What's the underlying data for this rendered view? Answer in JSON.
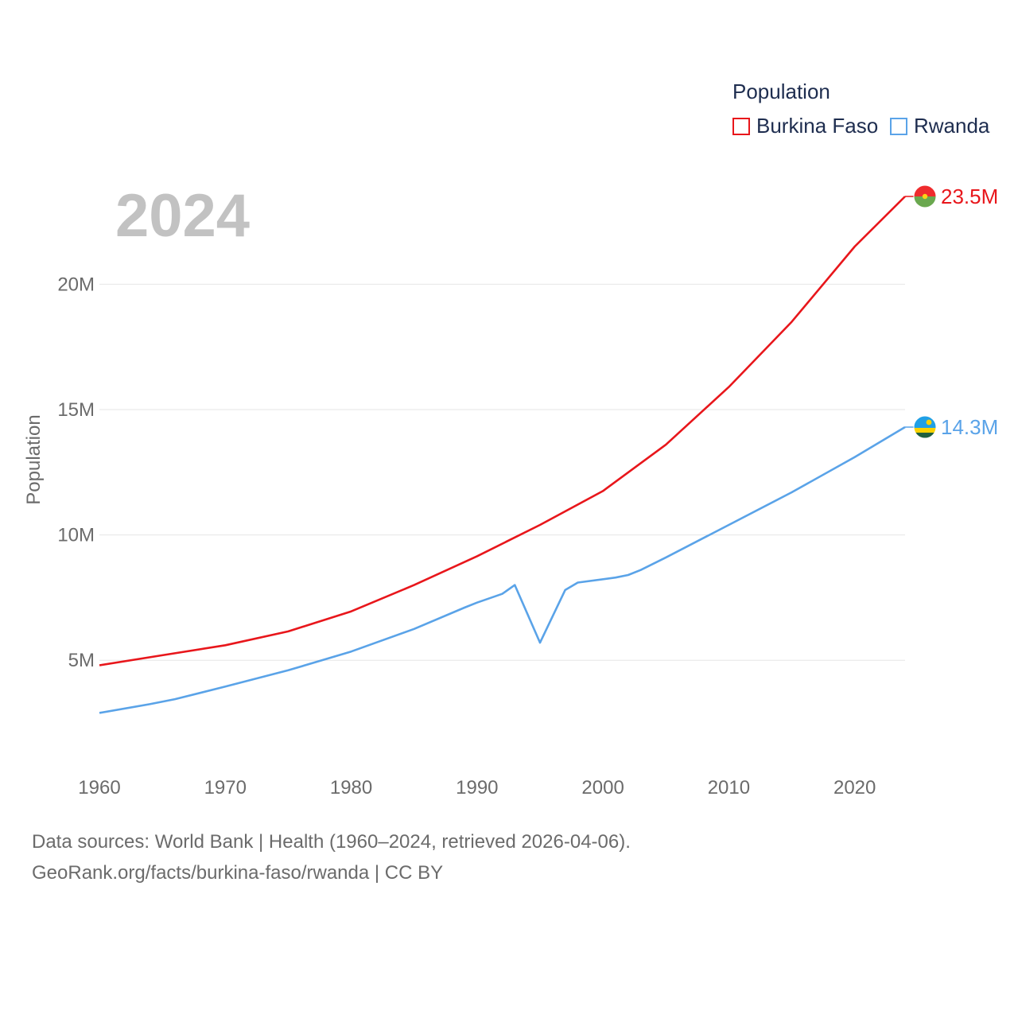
{
  "legend": {
    "title": "Population",
    "items": [
      {
        "label": "Burkina Faso",
        "color": "#e8161b"
      },
      {
        "label": "Rwanda",
        "color": "#5aa3e8"
      }
    ]
  },
  "year_label": "2024",
  "footer": {
    "line1": "Data sources: World Bank | Health (1960–2024, retrieved 2026-04-06).",
    "line2": "GeoRank.org/facts/burkina-faso/rwanda | CC BY"
  },
  "chart_data": {
    "type": "line",
    "title": "",
    "xlabel": "",
    "ylabel": "Population",
    "xlim": [
      1960,
      2024
    ],
    "ylim": [
      2500000,
      23500000
    ],
    "x_ticks": [
      1960,
      1970,
      1980,
      1990,
      2000,
      2010,
      2020
    ],
    "x_tick_labels": [
      "1960",
      "1970",
      "1980",
      "1990",
      "2000",
      "2010",
      "2020"
    ],
    "y_ticks": [
      5000000,
      10000000,
      15000000,
      20000000
    ],
    "y_tick_labels": [
      "5M",
      "10M",
      "15M",
      "20M"
    ],
    "grid": true,
    "series": [
      {
        "name": "Burkina Faso",
        "color": "#e8161b",
        "end_label": "23.5M",
        "flag": "burkina-faso-flag",
        "points": [
          [
            1960,
            4800000
          ],
          [
            1965,
            5200000
          ],
          [
            1970,
            5600000
          ],
          [
            1975,
            6150000
          ],
          [
            1980,
            6950000
          ],
          [
            1985,
            8000000
          ],
          [
            1990,
            9150000
          ],
          [
            1995,
            10400000
          ],
          [
            2000,
            11750000
          ],
          [
            2005,
            13600000
          ],
          [
            2010,
            15900000
          ],
          [
            2015,
            18500000
          ],
          [
            2020,
            21500000
          ],
          [
            2024,
            23500000
          ]
        ]
      },
      {
        "name": "Rwanda",
        "color": "#5aa3e8",
        "end_label": "14.3M",
        "flag": "rwanda-flag",
        "points": [
          [
            1960,
            2900000
          ],
          [
            1964,
            3250000
          ],
          [
            1966,
            3450000
          ],
          [
            1970,
            3950000
          ],
          [
            1975,
            4600000
          ],
          [
            1980,
            5350000
          ],
          [
            1985,
            6250000
          ],
          [
            1989,
            7100000
          ],
          [
            1990,
            7300000
          ],
          [
            1992,
            7650000
          ],
          [
            1993,
            8000000
          ],
          [
            1995,
            5700000
          ],
          [
            1997,
            7800000
          ],
          [
            1998,
            8100000
          ],
          [
            2001,
            8300000
          ],
          [
            2002,
            8400000
          ],
          [
            2003,
            8600000
          ],
          [
            2005,
            9100000
          ],
          [
            2010,
            10400000
          ],
          [
            2015,
            11700000
          ],
          [
            2020,
            13100000
          ],
          [
            2024,
            14300000
          ]
        ]
      }
    ]
  }
}
